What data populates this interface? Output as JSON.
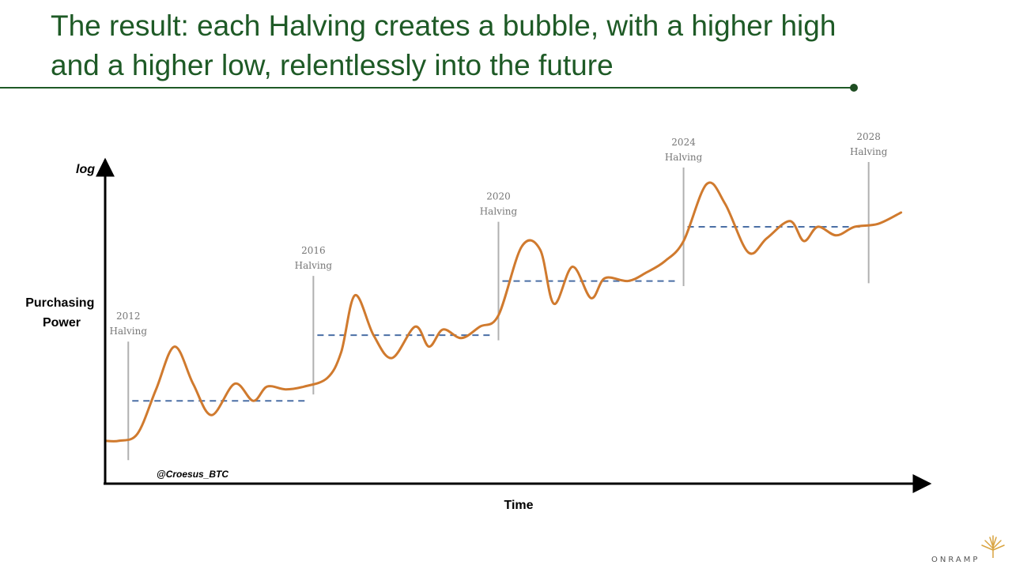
{
  "slide": {
    "title_line1": "The result: each Halving creates a bubble, with a higher high",
    "title_line2": "and a higher low, relentlessly into the future",
    "brand": "ONRAMP",
    "colors": {
      "title": "#1e5a26",
      "curve": "#d07a2e",
      "dashed": "#4a6fa5",
      "marker": "#b0b0b0",
      "axis": "#000000"
    }
  },
  "chart_data": {
    "type": "line",
    "title": "The result: each Halving creates a bubble, with a higher high and a higher low, relentlessly into the future",
    "xlabel": "Time",
    "ylabel": "Purchasing Power",
    "y_scale_label": "log",
    "watermark": "@Croesus_BTC",
    "grid": false,
    "axes": {
      "x_min": 2011.5,
      "x_max": 2030.5,
      "y_min": 0,
      "y_max": 100
    },
    "halvings": [
      {
        "year": 2012,
        "label_year": "2012",
        "label_text": "Halving",
        "floor_level": 21
      },
      {
        "year": 2016,
        "label_year": "2016",
        "label_text": "Halving",
        "floor_level": 44
      },
      {
        "year": 2020,
        "label_year": "2020",
        "label_text": "Halving",
        "floor_level": 63
      },
      {
        "year": 2024,
        "label_year": "2024",
        "label_text": "Halving",
        "floor_level": 82
      },
      {
        "year": 2028,
        "label_year": "2028",
        "label_text": "Halving",
        "floor_level": null
      }
    ],
    "series": [
      {
        "points": [
          [
            2011.5,
            7
          ],
          [
            2011.8,
            7
          ],
          [
            2012.2,
            9.5
          ],
          [
            2012.6,
            25
          ],
          [
            2013.0,
            40
          ],
          [
            2013.4,
            27
          ],
          [
            2013.8,
            16
          ],
          [
            2014.3,
            27
          ],
          [
            2014.7,
            21
          ],
          [
            2015.0,
            26
          ],
          [
            2015.4,
            25
          ],
          [
            2015.8,
            26
          ],
          [
            2016.3,
            29
          ],
          [
            2016.6,
            38
          ],
          [
            2016.9,
            58
          ],
          [
            2017.3,
            44
          ],
          [
            2017.7,
            36
          ],
          [
            2018.2,
            47
          ],
          [
            2018.5,
            40
          ],
          [
            2018.8,
            46
          ],
          [
            2019.2,
            43
          ],
          [
            2019.6,
            47
          ],
          [
            2020.0,
            51
          ],
          [
            2020.5,
            75
          ],
          [
            2020.9,
            74
          ],
          [
            2021.2,
            55
          ],
          [
            2021.6,
            68
          ],
          [
            2022.0,
            57
          ],
          [
            2022.3,
            64
          ],
          [
            2022.8,
            63
          ],
          [
            2023.2,
            66
          ],
          [
            2023.6,
            70
          ],
          [
            2024.0,
            77
          ],
          [
            2024.5,
            97
          ],
          [
            2024.9,
            90
          ],
          [
            2025.4,
            73
          ],
          [
            2025.8,
            78
          ],
          [
            2026.3,
            84
          ],
          [
            2026.6,
            77
          ],
          [
            2026.9,
            82
          ],
          [
            2027.3,
            79
          ],
          [
            2027.7,
            82
          ],
          [
            2028.2,
            83
          ],
          [
            2028.7,
            87
          ]
        ]
      }
    ]
  }
}
